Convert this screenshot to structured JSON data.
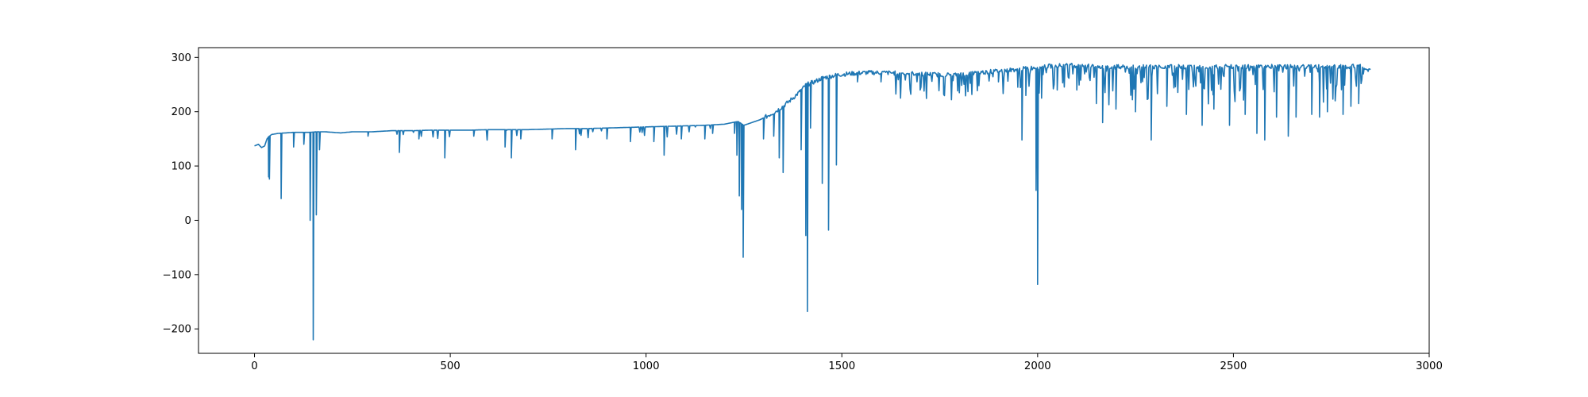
{
  "chart_data": {
    "type": "line",
    "title": "",
    "xlabel": "",
    "ylabel": "",
    "xlim": [
      -143,
      3000
    ],
    "ylim": [
      -245,
      318
    ],
    "xticks": [
      0,
      500,
      1000,
      1500,
      2000,
      2500,
      3000
    ],
    "yticks": [
      -200,
      -100,
      0,
      100,
      200,
      300
    ],
    "xtick_labels": [
      "0",
      "500",
      "1000",
      "1500",
      "2000",
      "2500",
      "3000"
    ],
    "ytick_labels": [
      "−200",
      "−100",
      "0",
      "100",
      "200",
      "300"
    ],
    "grid": false,
    "line_color": "#1f77b4",
    "series": [
      {
        "points": [
          [
            0,
            137
          ],
          [
            10,
            140
          ],
          [
            18,
            134
          ],
          [
            26,
            137
          ],
          [
            32,
            150
          ],
          [
            38,
            155
          ],
          [
            44,
            158
          ],
          [
            60,
            160
          ],
          [
            80,
            161
          ],
          [
            100,
            162
          ],
          [
            120,
            162
          ],
          [
            140,
            162
          ],
          [
            160,
            163
          ],
          [
            180,
            163
          ],
          [
            200,
            162
          ],
          [
            220,
            161
          ],
          [
            250,
            163
          ],
          [
            300,
            163
          ],
          [
            350,
            165
          ],
          [
            400,
            165
          ],
          [
            450,
            166
          ],
          [
            500,
            166
          ],
          [
            550,
            166
          ],
          [
            600,
            167
          ],
          [
            650,
            167
          ],
          [
            700,
            167
          ],
          [
            750,
            168
          ],
          [
            800,
            169
          ],
          [
            850,
            169
          ],
          [
            900,
            170
          ],
          [
            950,
            171
          ],
          [
            1000,
            172
          ],
          [
            1050,
            173
          ],
          [
            1100,
            174
          ],
          [
            1150,
            175
          ],
          [
            1200,
            177
          ],
          [
            1220,
            180
          ],
          [
            1235,
            182
          ],
          [
            1250,
            175
          ],
          [
            1270,
            180
          ],
          [
            1290,
            185
          ],
          [
            1310,
            192
          ],
          [
            1330,
            200
          ],
          [
            1350,
            210
          ],
          [
            1370,
            222
          ],
          [
            1390,
            235
          ],
          [
            1410,
            250
          ],
          [
            1430,
            255
          ],
          [
            1450,
            262
          ],
          [
            1470,
            265
          ],
          [
            1490,
            268
          ],
          [
            1520,
            270
          ],
          [
            1560,
            272
          ],
          [
            1600,
            272
          ],
          [
            1650,
            271
          ],
          [
            1700,
            270
          ],
          [
            1750,
            268
          ],
          [
            1800,
            268
          ],
          [
            1850,
            272
          ],
          [
            1900,
            275
          ],
          [
            1950,
            278
          ],
          [
            2000,
            282
          ],
          [
            2050,
            285
          ],
          [
            2100,
            285
          ],
          [
            2150,
            283
          ],
          [
            2200,
            283
          ],
          [
            2250,
            282
          ],
          [
            2300,
            283
          ],
          [
            2350,
            283
          ],
          [
            2400,
            283
          ],
          [
            2450,
            283
          ],
          [
            2500,
            283
          ],
          [
            2550,
            283
          ],
          [
            2600,
            283
          ],
          [
            2650,
            283
          ],
          [
            2700,
            283
          ],
          [
            2750,
            283
          ],
          [
            2800,
            283
          ],
          [
            2830,
            285
          ],
          [
            2850,
            275
          ]
        ],
        "drops": [
          [
            35,
            80
          ],
          [
            38,
            76
          ],
          [
            68,
            40
          ],
          [
            100,
            135
          ],
          [
            125,
            140
          ],
          [
            142,
            0
          ],
          [
            150,
            -220
          ],
          [
            158,
            10
          ],
          [
            165,
            130
          ],
          [
            290,
            155
          ],
          [
            370,
            125
          ],
          [
            420,
            150
          ],
          [
            485,
            115
          ],
          [
            560,
            155
          ],
          [
            640,
            135
          ],
          [
            655,
            115
          ],
          [
            680,
            150
          ],
          [
            760,
            150
          ],
          [
            820,
            130
          ],
          [
            900,
            150
          ],
          [
            960,
            145
          ],
          [
            1020,
            145
          ],
          [
            1045,
            120
          ],
          [
            1090,
            150
          ],
          [
            1150,
            150
          ],
          [
            1170,
            160
          ],
          [
            1225,
            160
          ],
          [
            1232,
            120
          ],
          [
            1238,
            45
          ],
          [
            1243,
            20
          ],
          [
            1248,
            -68
          ],
          [
            1300,
            150
          ],
          [
            1325,
            155
          ],
          [
            1340,
            115
          ],
          [
            1350,
            88
          ],
          [
            1395,
            130
          ],
          [
            1408,
            -28
          ],
          [
            1412,
            -168
          ],
          [
            1420,
            170
          ],
          [
            1450,
            68
          ],
          [
            1465,
            -18
          ],
          [
            1485,
            102
          ],
          [
            1540,
            255
          ],
          [
            1600,
            255
          ],
          [
            1650,
            225
          ],
          [
            1700,
            240
          ],
          [
            1760,
            232
          ],
          [
            1800,
            235
          ],
          [
            1850,
            248
          ],
          [
            1900,
            255
          ],
          [
            1950,
            260
          ],
          [
            1960,
            148
          ],
          [
            1970,
            230
          ],
          [
            1996,
            55
          ],
          [
            2000,
            -118
          ],
          [
            2010,
            225
          ],
          [
            2050,
            240
          ],
          [
            2100,
            240
          ],
          [
            2150,
            215
          ],
          [
            2165,
            180
          ],
          [
            2200,
            205
          ],
          [
            2250,
            200
          ],
          [
            2290,
            148
          ],
          [
            2330,
            210
          ],
          [
            2380,
            195
          ],
          [
            2420,
            175
          ],
          [
            2450,
            205
          ],
          [
            2490,
            175
          ],
          [
            2530,
            195
          ],
          [
            2560,
            160
          ],
          [
            2580,
            148
          ],
          [
            2610,
            190
          ],
          [
            2640,
            155
          ],
          [
            2660,
            190
          ],
          [
            2700,
            195
          ],
          [
            2720,
            190
          ],
          [
            2740,
            200
          ],
          [
            2760,
            220
          ],
          [
            2780,
            195
          ],
          [
            2800,
            210
          ],
          [
            2820,
            215
          ]
        ]
      }
    ]
  }
}
